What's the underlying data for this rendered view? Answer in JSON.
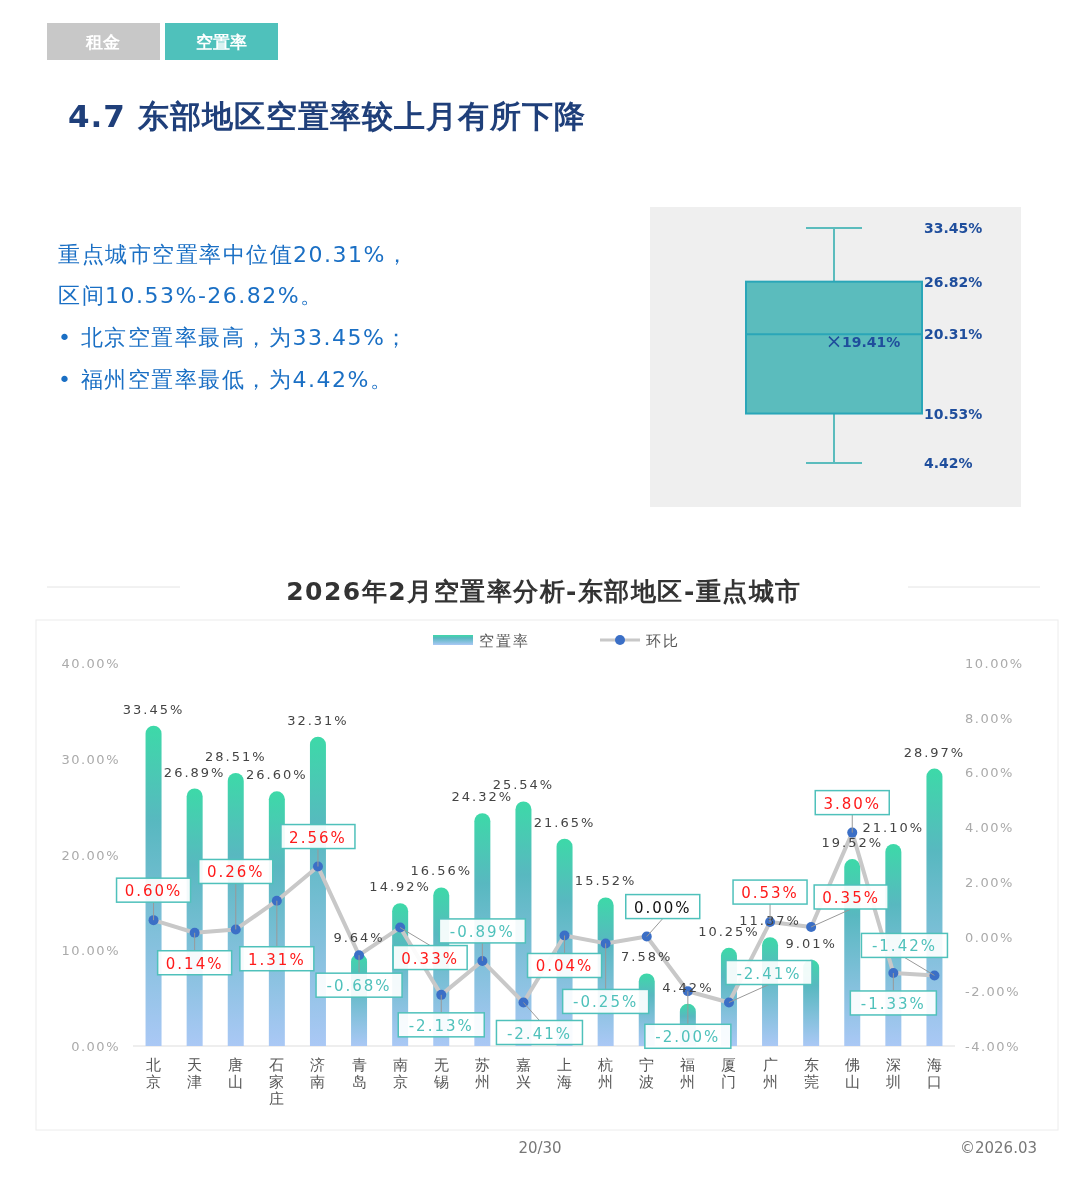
{
  "chart_data": [
    {
      "type": "box",
      "title": "4.7 东部地区空置率较上月有所下降",
      "annotations": [
        "租金",
        "空置率",
        "重点城市空置率中位值20.31%，",
        "区间10.53%-26.82%。",
        "• 北京空置率最高，为33.45%；",
        "• 福州空置率最低，为4.42%。",
        "19.41%"
      ],
      "ylim": [
        4.42,
        33.45
      ],
      "yticks": [
        {
          "value": 4.42,
          "label": "4.42%"
        },
        {
          "value": 10.53,
          "label": "10.53%"
        },
        {
          "value": 20.31,
          "label": "20.31%"
        },
        {
          "value": 26.82,
          "label": "26.82%"
        },
        {
          "value": 33.45,
          "label": "33.45%"
        }
      ],
      "series": [
        {
          "color": "#5bbcbd",
          "boxes": [
            {
              "low": 4.42,
              "q1": 10.53,
              "median": 20.31,
              "q3": 26.82,
              "high": 33.45,
              "mean": 19.41
            }
          ]
        }
      ]
    },
    {
      "type": "bar",
      "title": "2026年2月空置率分析-东部地区-重点城市",
      "categories": [
        "北京",
        "天津",
        "唐山",
        "石家庄",
        "济南",
        "青岛",
        "南京",
        "无锡",
        "苏州",
        "嘉兴",
        "上海",
        "杭州",
        "宁波",
        "福州",
        "厦门",
        "广州",
        "东莞",
        "佛山",
        "深圳",
        "海口"
      ],
      "series": [
        {
          "name": "空置率",
          "type": "bar",
          "color": "#3dd9a8",
          "values": [
            33.45,
            26.89,
            28.51,
            26.6,
            32.31,
            9.64,
            14.92,
            16.56,
            24.32,
            25.54,
            21.65,
            15.52,
            7.58,
            4.42,
            10.25,
            11.37,
            9.01,
            19.52,
            21.1,
            28.97
          ],
          "value_labels": [
            "33.45%",
            "26.89%",
            "28.51%",
            "26.60%",
            "32.31%",
            "9.64%",
            "14.92%",
            "16.56%",
            "24.32%",
            "25.54%",
            "21.65%",
            "15.52%",
            "7.58%",
            "4.42%",
            "10.25%",
            "11.37%",
            "9.01%",
            "19.52%",
            "21.10%",
            "28.97%"
          ]
        },
        {
          "name": "环比",
          "type": "line",
          "axis": "y2",
          "color": "#c8c8c8",
          "values": [
            0.6,
            0.14,
            0.26,
            1.31,
            2.56,
            -0.68,
            0.33,
            -2.13,
            -0.89,
            -2.41,
            0.04,
            -0.25,
            0.0,
            -2.0,
            -2.41,
            0.53,
            0.35,
            3.8,
            -1.33,
            -1.42
          ],
          "value_labels": [
            "0.60%",
            "0.14%",
            "0.26%",
            "1.31%",
            "2.56%",
            "-0.68%",
            "0.33%",
            "-2.13%",
            "-0.89%",
            "-2.41%",
            "0.04%",
            "-0.25%",
            "0.00%",
            "-2.00%",
            "-2.41%",
            "0.53%",
            "0.35%",
            "3.80%",
            "-1.33%",
            "-1.42%"
          ]
        }
      ],
      "ylim": [
        0,
        40
      ],
      "yticks": [
        {
          "value": 0,
          "label": "0.00%"
        },
        {
          "value": 10,
          "label": "10.00%"
        },
        {
          "value": 20,
          "label": "20.00%"
        },
        {
          "value": 30,
          "label": "30.00%"
        },
        {
          "value": 40,
          "label": "40.00%"
        }
      ],
      "y2lim": [
        -4,
        10
      ],
      "y2ticks": [
        {
          "value": -4,
          "label": "-4.00%"
        },
        {
          "value": -2,
          "label": "-2.00%"
        },
        {
          "value": 0,
          "label": "0.00%"
        },
        {
          "value": 2,
          "label": "2.00%"
        },
        {
          "value": 4,
          "label": "4.00%"
        },
        {
          "value": 6,
          "label": "6.00%"
        },
        {
          "value": 8,
          "label": "8.00%"
        },
        {
          "value": 10,
          "label": "10.00%"
        }
      ],
      "legend": "top",
      "marker": "circle",
      "annotations": [
        "20/30",
        "©2026.03"
      ]
    }
  ]
}
